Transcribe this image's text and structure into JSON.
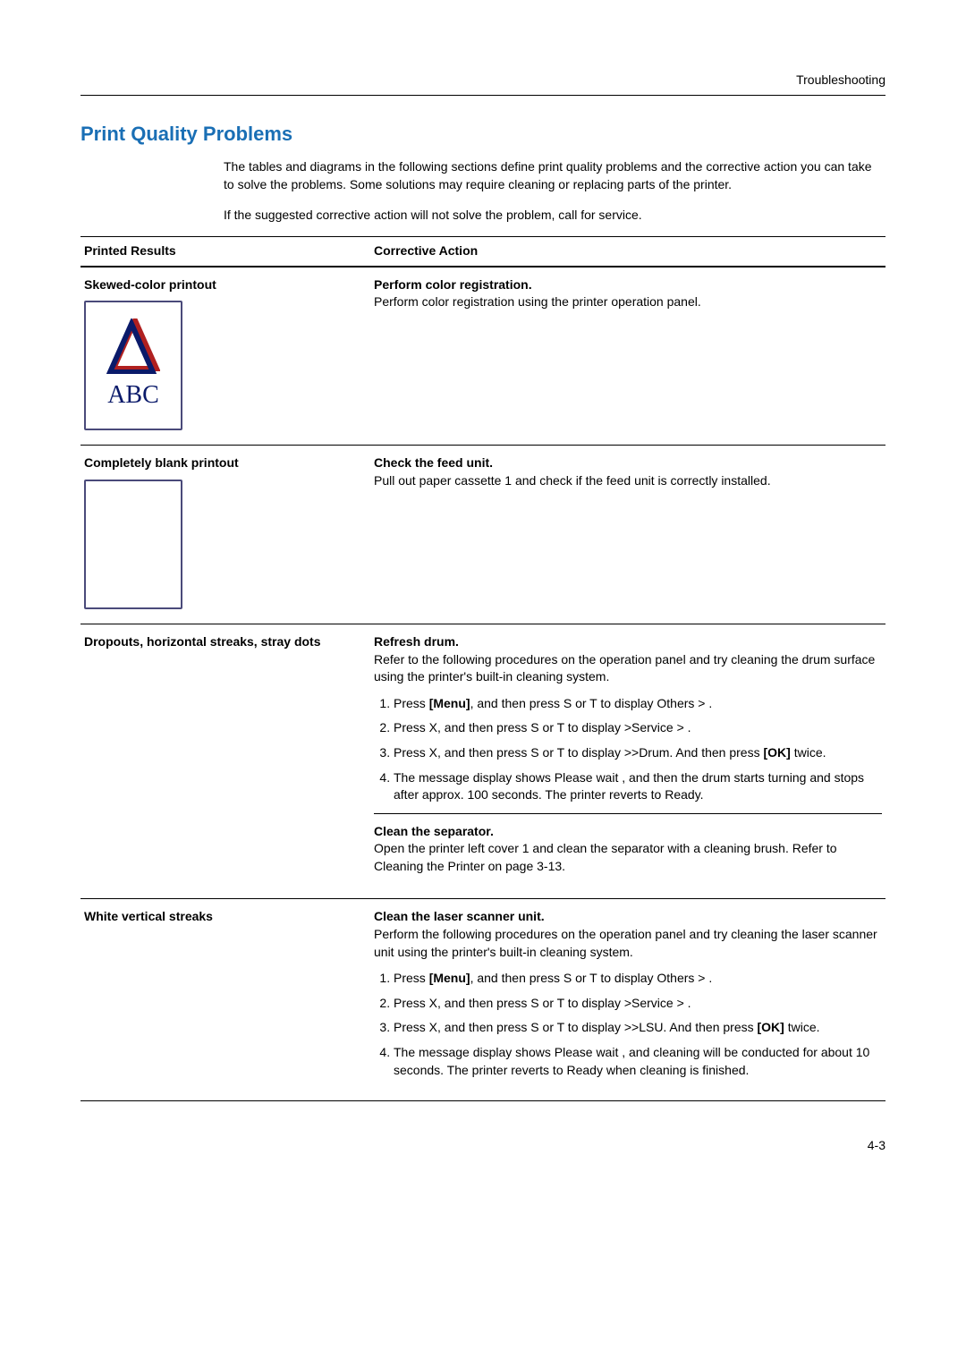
{
  "header": {
    "right": "Troubleshooting"
  },
  "section_title": "Print Quality Problems",
  "intro": [
    "The tables and diagrams in the following sections define print quality problems and the corrective action you can take to solve the problems. Some solutions may require cleaning or replacing parts of the printer.",
    "If the suggested corrective action will not solve the problem, call for service."
  ],
  "columns": {
    "left": "Printed Results",
    "right": "Corrective Action"
  },
  "rows": [
    {
      "result_title": "Skewed-color printout",
      "illustration": "abc",
      "actions": [
        {
          "title": "Perform color registration.",
          "text": "Perform color registration using the printer operation panel.",
          "steps": []
        }
      ]
    },
    {
      "result_title": "Completely blank printout",
      "illustration": "blank",
      "actions": [
        {
          "title": "Check the feed unit.",
          "text": "Pull out paper cassette 1 and check if the feed unit is correctly installed.",
          "steps": []
        }
      ]
    },
    {
      "result_title": "Dropouts, horizontal streaks, stray dots",
      "illustration": "",
      "actions": [
        {
          "title": "Refresh drum.",
          "text": "Refer to the following procedures on the operation panel and try cleaning the drum surface using the printer's built-in cleaning system.",
          "steps": [
            "Press <b>[Menu]</b>, and then press  S or  T to display Others >   .",
            "Press  X, and then press  S or  T to display >Service >    .",
            "Press  X, and then press  S or  T to display >>Drum. And then press <b>[OK]</b> twice.",
            "The message display shows Please wait    , and then the drum starts turning and stops after approx. 100 seconds. The printer reverts to Ready."
          ]
        },
        {
          "title": "Clean the separator.",
          "text": "Open the printer left cover 1 and clean the separator with a cleaning brush. Refer to Cleaning the Printer on page 3-13.",
          "steps": []
        }
      ]
    },
    {
      "result_title": "White vertical streaks",
      "illustration": "",
      "actions": [
        {
          "title": "Clean the laser scanner unit.",
          "text": "Perform the following procedures on the operation panel and try cleaning the laser scanner unit using the printer's built-in cleaning system.",
          "steps": [
            "Press <b>[Menu]</b>, and then press  S or  T to display Others >   .",
            "Press  X, and then press  S or  T to display >Service >    .",
            "Press  X, and then press  S or  T to display >>LSU. And then press <b>[OK]</b> twice.",
            "The message display shows Please wait    , and cleaning will be conducted for about 10 seconds. The printer reverts to Ready when cleaning is finished."
          ]
        }
      ]
    }
  ],
  "page_number": "4-3",
  "colors": {
    "heading": "#1a6fb5",
    "box_border": "#4a4a7a",
    "abc_text": "#0a1a6a",
    "triangle_blue": "#0a1a6a",
    "triangle_red": "#b02020"
  }
}
